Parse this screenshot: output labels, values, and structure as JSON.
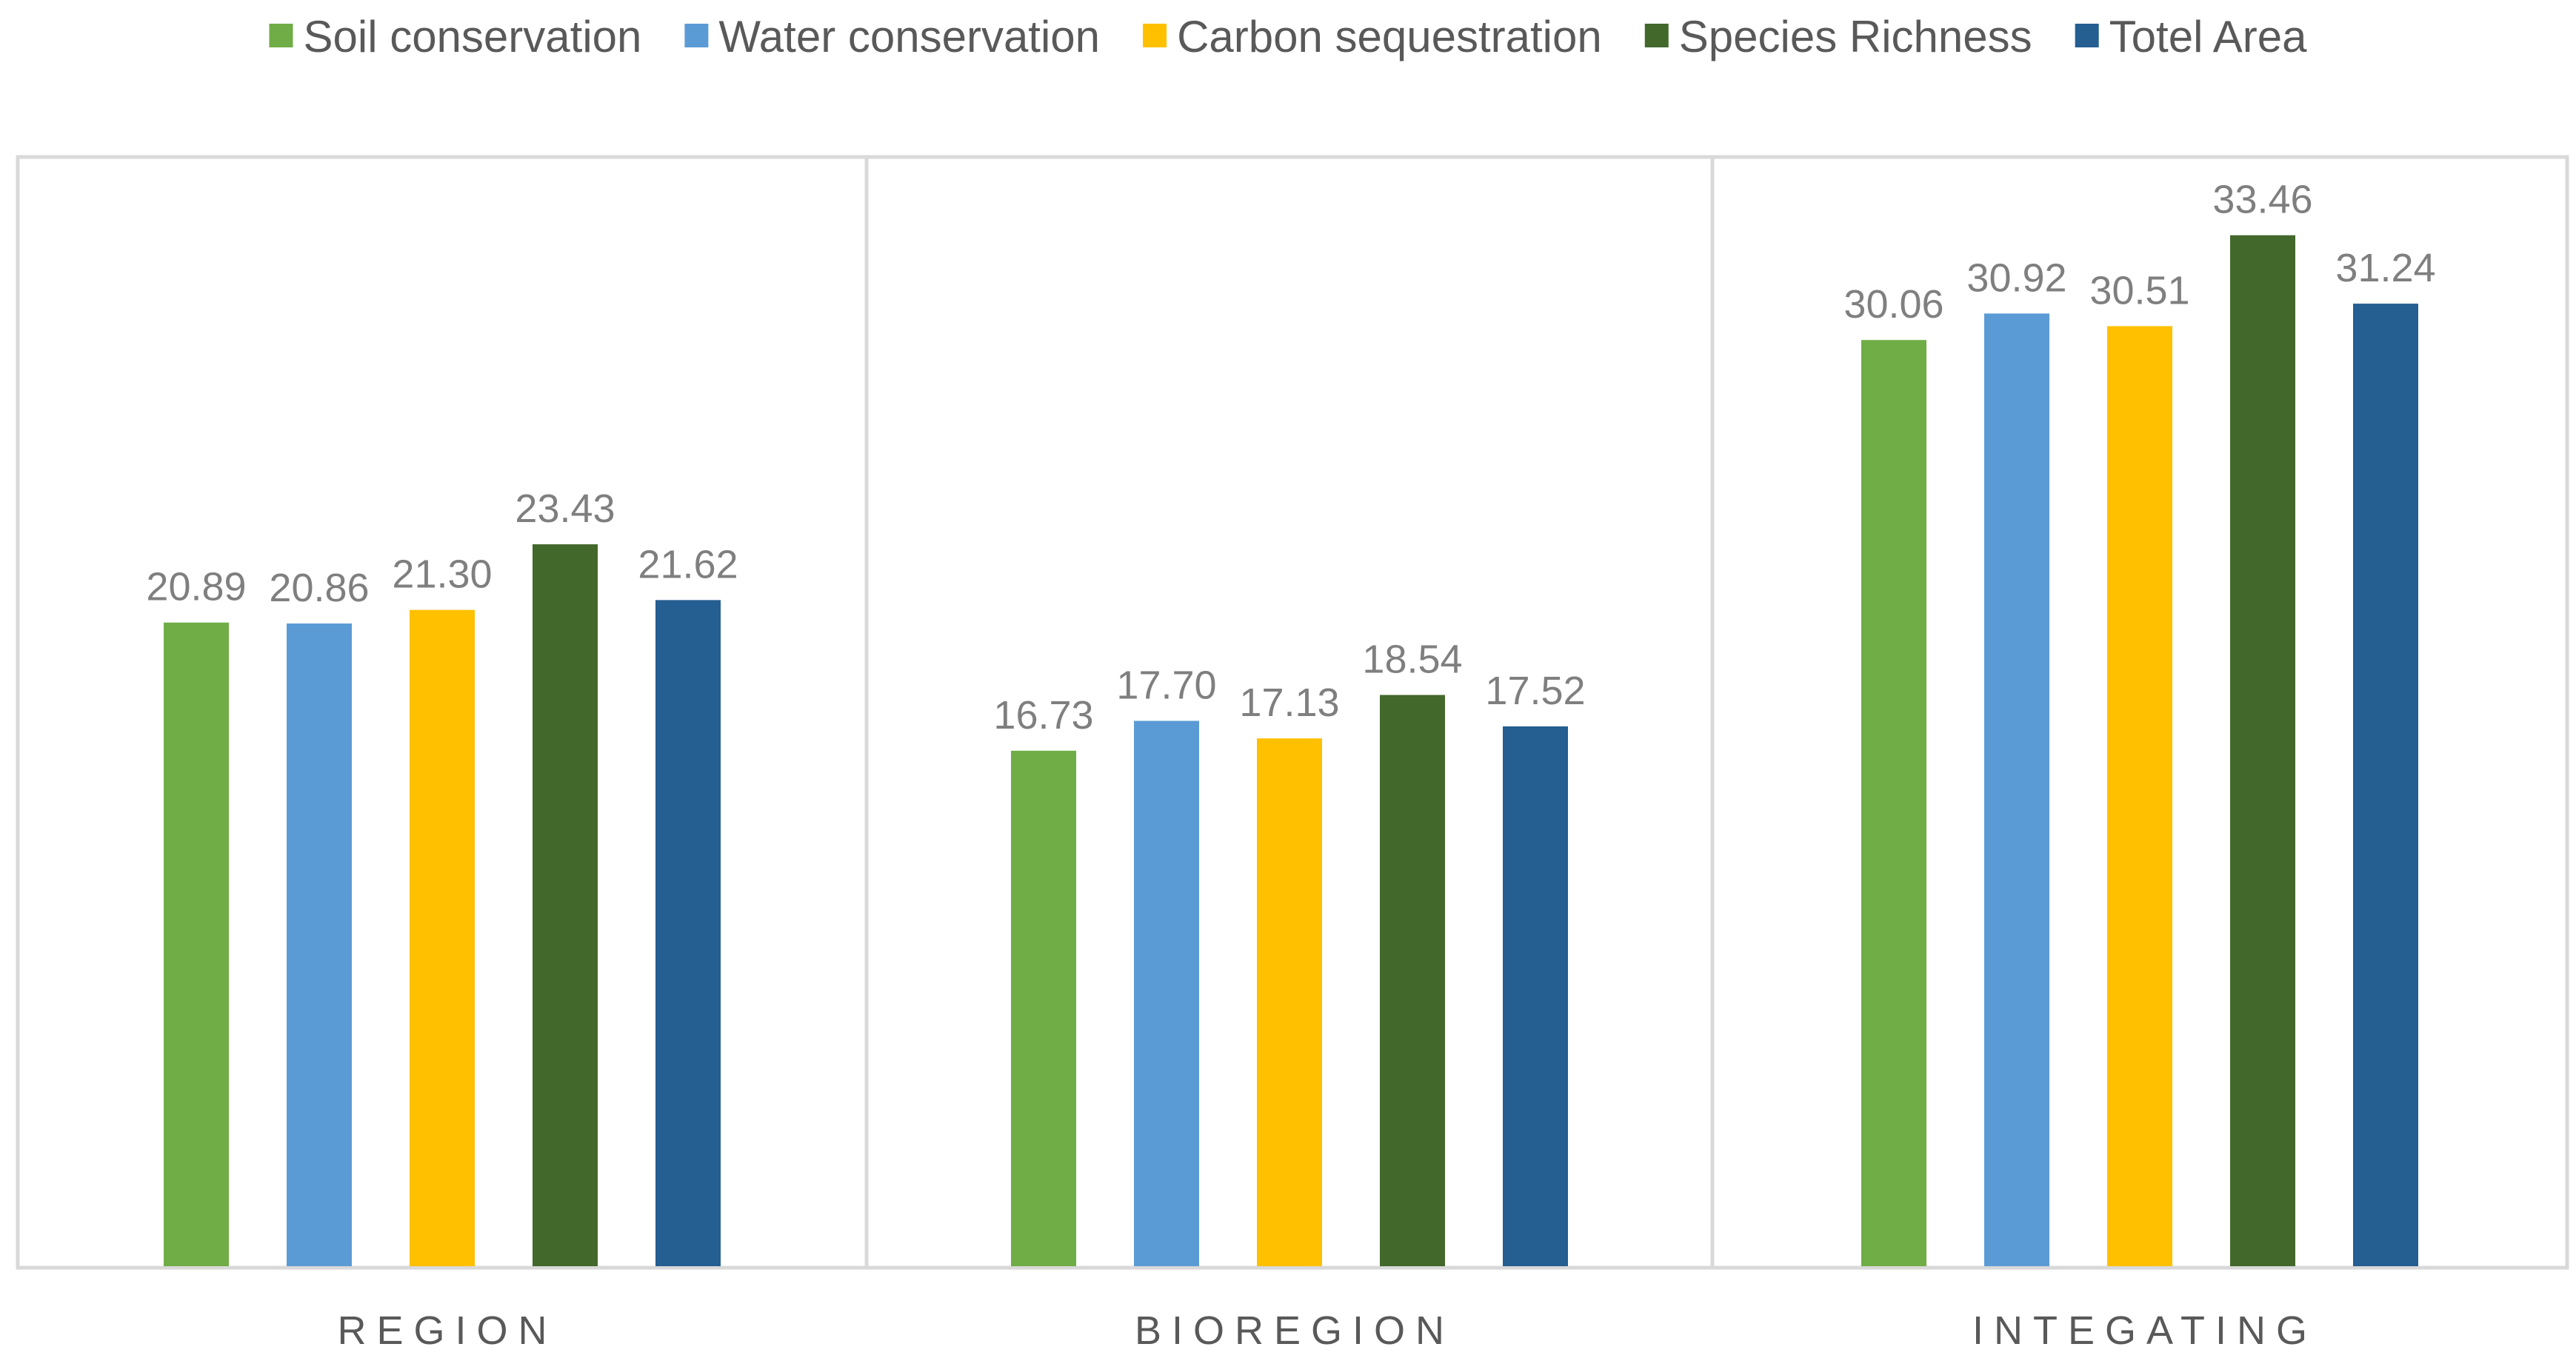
{
  "chart_data": {
    "type": "bar",
    "title": "",
    "xlabel": "",
    "ylabel": "",
    "ylim": [
      0,
      36
    ],
    "grid": false,
    "legend_position": "top",
    "categories": [
      "REGION",
      "BIOREGION",
      "INTEGATING"
    ],
    "series": [
      {
        "name": "Soil conservation",
        "color": "#70AD47",
        "values": [
          20.89,
          16.73,
          30.06
        ],
        "labels": [
          "20.89",
          "16.73",
          "30.06"
        ]
      },
      {
        "name": "Water conservation",
        "color": "#5B9BD5",
        "values": [
          20.86,
          17.7,
          30.92
        ],
        "labels": [
          "20.86",
          "17.70",
          "30.92"
        ]
      },
      {
        "name": "Carbon sequestration",
        "color": "#FFC000",
        "values": [
          21.3,
          17.13,
          30.51
        ],
        "labels": [
          "21.30",
          "17.13",
          "30.51"
        ]
      },
      {
        "name": "Species Richness",
        "color": "#43682B",
        "values": [
          23.43,
          18.54,
          33.46
        ],
        "labels": [
          "23.43",
          "18.54",
          "33.46"
        ]
      },
      {
        "name": "Totel Area",
        "color": "#255E91",
        "values": [
          21.62,
          17.52,
          31.24
        ],
        "labels": [
          "21.62",
          "17.52",
          "31.24"
        ]
      }
    ]
  },
  "colors": {
    "frame": "#d9d9d9",
    "axis_text": "#595959",
    "data_label_text": "#7f7f7f"
  }
}
